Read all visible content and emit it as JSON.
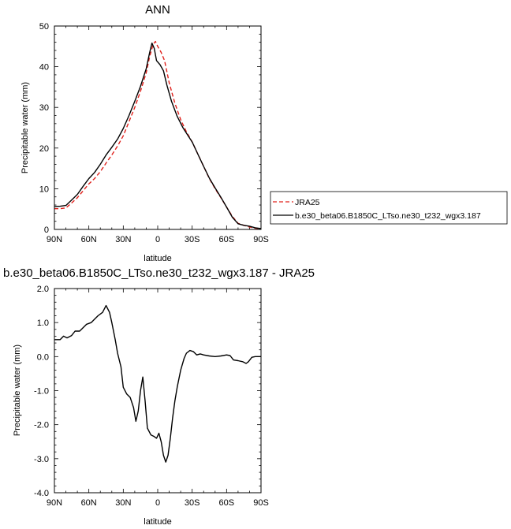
{
  "chart_data": [
    {
      "type": "line",
      "title": "ANN",
      "xlabel": "latitude",
      "ylabel": "Precipitable water (mm)",
      "xlim": [
        -90,
        90
      ],
      "ylim": [
        0,
        50
      ],
      "x_ticks": [
        {
          "value": -90,
          "label": "90N"
        },
        {
          "value": -60,
          "label": "60N"
        },
        {
          "value": -30,
          "label": "30N"
        },
        {
          "value": 0,
          "label": "0"
        },
        {
          "value": 30,
          "label": "30S"
        },
        {
          "value": 60,
          "label": "60S"
        },
        {
          "value": 90,
          "label": "90S"
        }
      ],
      "y_ticks": [
        {
          "value": 0,
          "label": "0"
        },
        {
          "value": 10,
          "label": "10"
        },
        {
          "value": 20,
          "label": "20"
        },
        {
          "value": 30,
          "label": "30"
        },
        {
          "value": 40,
          "label": "40"
        },
        {
          "value": 50,
          "label": "50"
        }
      ],
      "legend": "right",
      "series": [
        {
          "name": "JRA25",
          "color": "#e0201b",
          "dash": "dashed",
          "points": [
            [
              -90,
              5.1
            ],
            [
              -85,
              5.1
            ],
            [
              -80,
              5.3
            ],
            [
              -75,
              6.5
            ],
            [
              -70,
              7.8
            ],
            [
              -65,
              9.5
            ],
            [
              -60,
              11.2
            ],
            [
              -55,
              12.5
            ],
            [
              -50,
              14.2
            ],
            [
              -45,
              16.3
            ],
            [
              -40,
              18.3
            ],
            [
              -35,
              20.5
            ],
            [
              -30,
              23.0
            ],
            [
              -25,
              26.5
            ],
            [
              -20,
              30.0
            ],
            [
              -15,
              34.0
            ],
            [
              -10,
              38.5
            ],
            [
              -7,
              42.5
            ],
            [
              -4,
              45.5
            ],
            [
              -2,
              46.2
            ],
            [
              0,
              45.0
            ],
            [
              3,
              43.5
            ],
            [
              6,
              41.5
            ],
            [
              10,
              36.0
            ],
            [
              15,
              31.0
            ],
            [
              20,
              27.0
            ],
            [
              25,
              24.0
            ],
            [
              30,
              21.5
            ],
            [
              35,
              18.5
            ],
            [
              40,
              15.5
            ],
            [
              45,
              12.5
            ],
            [
              50,
              10.0
            ],
            [
              55,
              7.8
            ],
            [
              60,
              5.5
            ],
            [
              65,
              3.2
            ],
            [
              70,
              1.5
            ],
            [
              75,
              1.0
            ],
            [
              80,
              0.6
            ],
            [
              85,
              0.3
            ],
            [
              90,
              0.2
            ]
          ]
        },
        {
          "name": "b.e30_beta06.B1850C_LTso.ne30_t232_wgx3.187",
          "color": "#000000",
          "dash": "solid",
          "points": [
            [
              -90,
              5.6
            ],
            [
              -85,
              5.7
            ],
            [
              -80,
              5.9
            ],
            [
              -75,
              7.2
            ],
            [
              -70,
              8.6
            ],
            [
              -65,
              10.6
            ],
            [
              -60,
              12.5
            ],
            [
              -55,
              14.0
            ],
            [
              -50,
              16.0
            ],
            [
              -45,
              18.3
            ],
            [
              -40,
              20.2
            ],
            [
              -35,
              22.2
            ],
            [
              -30,
              24.8
            ],
            [
              -25,
              28.0
            ],
            [
              -20,
              31.5
            ],
            [
              -15,
              35.2
            ],
            [
              -10,
              39.5
            ],
            [
              -7,
              43.5
            ],
            [
              -5,
              45.8
            ],
            [
              -3,
              44.5
            ],
            [
              -1,
              41.5
            ],
            [
              2,
              40.5
            ],
            [
              5,
              39.0
            ],
            [
              8,
              35.5
            ],
            [
              12,
              31.5
            ],
            [
              17,
              27.8
            ],
            [
              22,
              25.0
            ],
            [
              27,
              22.8
            ],
            [
              30,
              21.5
            ],
            [
              35,
              18.5
            ],
            [
              40,
              15.5
            ],
            [
              45,
              12.6
            ],
            [
              50,
              10.2
            ],
            [
              55,
              7.9
            ],
            [
              60,
              5.5
            ],
            [
              65,
              3.0
            ],
            [
              70,
              1.4
            ],
            [
              75,
              1.0
            ],
            [
              80,
              0.8
            ],
            [
              85,
              0.4
            ],
            [
              90,
              0.2
            ]
          ]
        }
      ]
    },
    {
      "type": "line",
      "title": "b.e30_beta06.B1850C_LTso.ne30_t232_wgx3.187 - JRA25",
      "xlabel": "latitude",
      "ylabel": "Precipitable water (mm)",
      "xlim": [
        -90,
        90
      ],
      "ylim": [
        -4,
        2
      ],
      "x_ticks": [
        {
          "value": -90,
          "label": "90N"
        },
        {
          "value": -60,
          "label": "60N"
        },
        {
          "value": -30,
          "label": "30N"
        },
        {
          "value": 0,
          "label": "0"
        },
        {
          "value": 30,
          "label": "30S"
        },
        {
          "value": 60,
          "label": "60S"
        },
        {
          "value": 90,
          "label": "90S"
        }
      ],
      "y_ticks": [
        {
          "value": 2,
          "label": "2.0"
        },
        {
          "value": 1,
          "label": "1.0"
        },
        {
          "value": 0,
          "label": "0.0"
        },
        {
          "value": -1,
          "label": "-1.0"
        },
        {
          "value": -2,
          "label": "-2.0"
        },
        {
          "value": -3,
          "label": "-3.0"
        },
        {
          "value": -4,
          "label": "-4.0"
        }
      ],
      "series": [
        {
          "color": "#000000",
          "dash": "solid",
          "points": [
            [
              -90,
              0.5
            ],
            [
              -85,
              0.5
            ],
            [
              -82,
              0.6
            ],
            [
              -79,
              0.55
            ],
            [
              -75,
              0.62
            ],
            [
              -72,
              0.75
            ],
            [
              -68,
              0.75
            ],
            [
              -65,
              0.85
            ],
            [
              -62,
              0.95
            ],
            [
              -58,
              1.0
            ],
            [
              -55,
              1.1
            ],
            [
              -52,
              1.2
            ],
            [
              -48,
              1.3
            ],
            [
              -45,
              1.5
            ],
            [
              -42,
              1.3
            ],
            [
              -40,
              1.0
            ],
            [
              -37,
              0.5
            ],
            [
              -35,
              0.1
            ],
            [
              -32,
              -0.3
            ],
            [
              -30,
              -0.9
            ],
            [
              -27,
              -1.1
            ],
            [
              -24,
              -1.2
            ],
            [
              -21,
              -1.5
            ],
            [
              -19,
              -1.9
            ],
            [
              -17,
              -1.6
            ],
            [
              -15,
              -1.0
            ],
            [
              -13,
              -0.6
            ],
            [
              -11,
              -1.3
            ],
            [
              -9,
              -2.1
            ],
            [
              -6,
              -2.3
            ],
            [
              -3,
              -2.35
            ],
            [
              -1,
              -2.4
            ],
            [
              1,
              -2.25
            ],
            [
              3,
              -2.5
            ],
            [
              5,
              -2.9
            ],
            [
              7,
              -3.1
            ],
            [
              9,
              -2.9
            ],
            [
              11,
              -2.4
            ],
            [
              13,
              -1.8
            ],
            [
              15,
              -1.3
            ],
            [
              17,
              -0.9
            ],
            [
              20,
              -0.4
            ],
            [
              23,
              -0.05
            ],
            [
              25,
              0.1
            ],
            [
              28,
              0.18
            ],
            [
              31,
              0.15
            ],
            [
              34,
              0.05
            ],
            [
              37,
              0.08
            ],
            [
              40,
              0.05
            ],
            [
              45,
              0.02
            ],
            [
              50,
              0.0
            ],
            [
              55,
              0.02
            ],
            [
              60,
              0.05
            ],
            [
              63,
              0.03
            ],
            [
              66,
              -0.1
            ],
            [
              70,
              -0.12
            ],
            [
              74,
              -0.15
            ],
            [
              77,
              -0.2
            ],
            [
              79,
              -0.15
            ],
            [
              82,
              -0.02
            ],
            [
              85,
              0.0
            ],
            [
              90,
              0.0
            ]
          ]
        }
      ]
    }
  ]
}
